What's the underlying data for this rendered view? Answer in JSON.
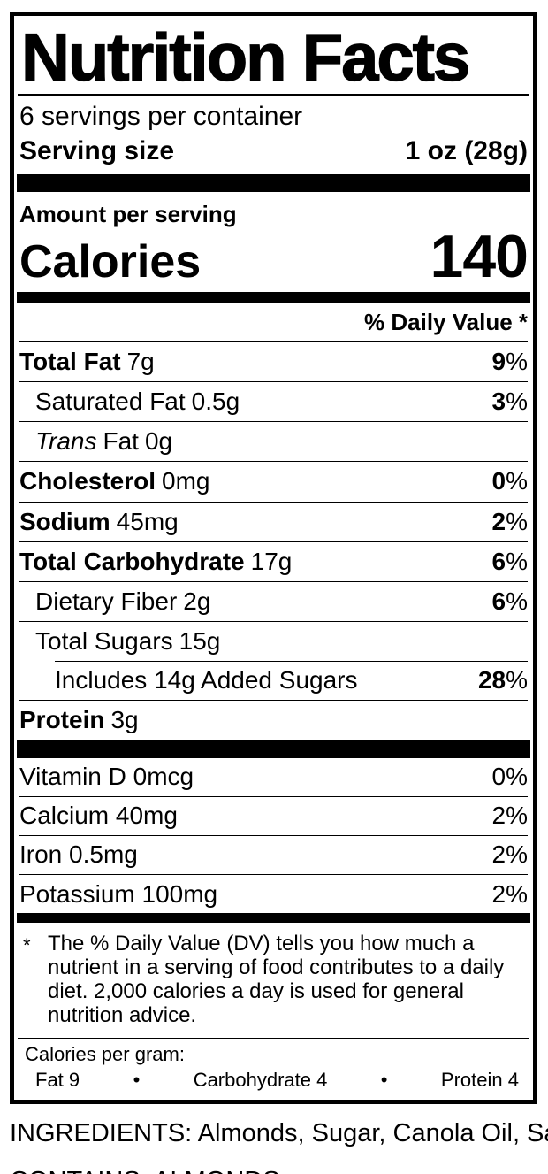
{
  "label": {
    "title": "Nutrition Facts",
    "servings_per_container": "6 servings per container",
    "serving_size": {
      "label": "Serving size",
      "value": "1 oz (28g)"
    },
    "amount_per_serving": "Amount per serving",
    "calories": {
      "label": "Calories",
      "value": "140"
    },
    "daily_value_header": "% Daily Value *",
    "percent_sign": "%",
    "rows": [
      {
        "name": "Total Fat",
        "amount": "7g",
        "dv": "9"
      },
      {
        "name": "Saturated Fat",
        "amount": "0.5g",
        "dv": "3"
      },
      {
        "name_italic": "Trans",
        "name_rest": "Fat",
        "amount": "0g"
      },
      {
        "name": "Cholesterol",
        "amount": "0mg",
        "dv": "0"
      },
      {
        "name": "Sodium",
        "amount": "45mg",
        "dv": "2"
      },
      {
        "name": "Total Carbohydrate",
        "amount": "17g",
        "dv": "6"
      },
      {
        "name": "Dietary Fiber",
        "amount": "2g",
        "dv": "6"
      },
      {
        "name": "Total Sugars",
        "amount": "15g"
      },
      {
        "name": "Includes 14g Added Sugars",
        "dv": "28"
      },
      {
        "name": "Protein",
        "amount": "3g"
      }
    ],
    "micronutrients": [
      {
        "name": "Vitamin D 0mcg",
        "dv": "0"
      },
      {
        "name": "Calcium 40mg",
        "dv": "2"
      },
      {
        "name": "Iron 0.5mg",
        "dv": "2"
      },
      {
        "name": "Potassium 100mg",
        "dv": "2"
      }
    ],
    "footnote": {
      "marker": "*",
      "text": "The % Daily Value (DV) tells you how much a nutrient in a serving of food contributes to a daily diet. 2,000 calories a day is used for general nutrition advice."
    },
    "calories_per_gram": {
      "label": "Calories per gram:",
      "fat": "Fat 9",
      "carbohydrate": "Carbohydrate 4",
      "protein": "Protein 4",
      "bullet": "•"
    }
  },
  "below_label": {
    "ingredients": "INGREDIENTS: Almonds, Sugar, Canola Oil, Salt",
    "contains": "CONTAINS: ALMONDS"
  },
  "colors": {
    "ink": "#000000",
    "background": "#ffffff"
  }
}
